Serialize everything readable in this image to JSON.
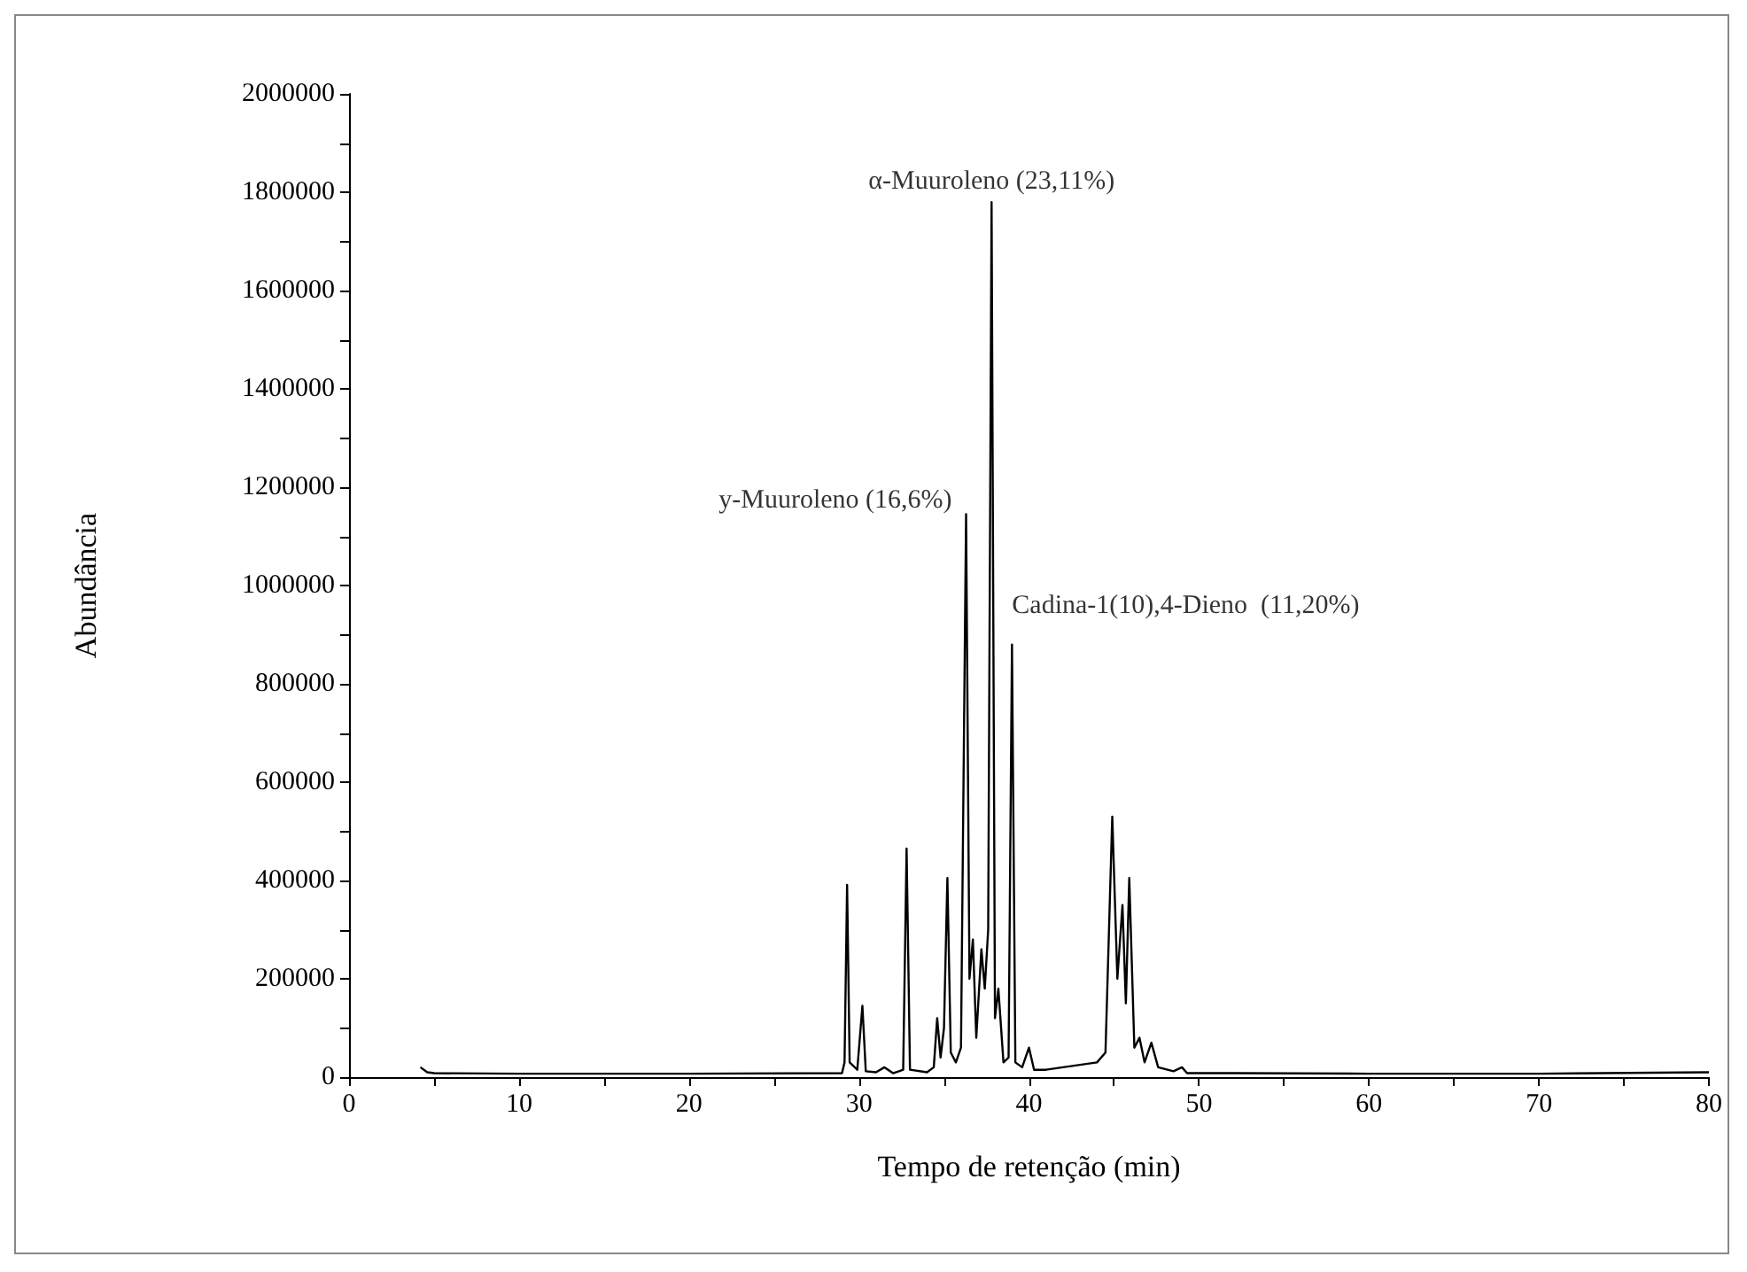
{
  "chart_data": {
    "type": "line",
    "xlabel": "Tempo de retenção (min)",
    "ylabel": "Abundância",
    "x": [
      4.2,
      4.6,
      5,
      10,
      20,
      29,
      29.15,
      29.3,
      29.45,
      29.9,
      30.2,
      30.4,
      31,
      31.5,
      32,
      32.6,
      32.8,
      33,
      34,
      34.4,
      34.6,
      34.8,
      35,
      35.2,
      35.4,
      35.7,
      36,
      36.3,
      36.5,
      36.7,
      36.9,
      37.2,
      37.4,
      37.6,
      37.8,
      38,
      38.2,
      38.5,
      38.8,
      39,
      39.2,
      39.6,
      40,
      40.3,
      41,
      42,
      43,
      44,
      44.5,
      44.9,
      45.2,
      45.5,
      45.7,
      45.9,
      46.2,
      46.5,
      46.8,
      47.2,
      47.6,
      48.5,
      49,
      49.3,
      52,
      60,
      70,
      80
    ],
    "values": [
      20000,
      10000,
      8000,
      7000,
      7000,
      8000,
      30000,
      391000,
      30000,
      15000,
      145000,
      12000,
      10000,
      20000,
      8000,
      15000,
      465000,
      15000,
      10000,
      20000,
      120000,
      40000,
      100000,
      405000,
      50000,
      30000,
      60000,
      1145000,
      200000,
      280000,
      80000,
      260000,
      180000,
      300000,
      1780000,
      120000,
      180000,
      30000,
      40000,
      880000,
      30000,
      20000,
      60000,
      15000,
      15000,
      20000,
      25000,
      30000,
      50000,
      530000,
      200000,
      350000,
      150000,
      405000,
      60000,
      80000,
      30000,
      70000,
      20000,
      12000,
      20000,
      8000,
      8000,
      7000,
      7000,
      10000
    ],
    "xlim": [
      0,
      80
    ],
    "xticks": [
      0,
      10,
      20,
      30,
      40,
      50,
      60,
      70,
      80
    ],
    "ylim": [
      0,
      2000000
    ],
    "yticks": [
      0,
      200000,
      400000,
      600000,
      800000,
      1000000,
      1200000,
      1400000,
      1600000,
      1800000,
      2000000
    ],
    "color": "#000000",
    "grid": false,
    "marker": "none",
    "line_style": "solid",
    "annotations": [
      {
        "text": "α-Muuroleno (23,11%)",
        "x": 37.8,
        "y": 1780000
      },
      {
        "text": "y-Muuroleno (16,6%)",
        "x": 36.3,
        "y": 1145000
      },
      {
        "text": "Cadina-1(10),4-Dieno  (11,20%)",
        "x": 39,
        "y": 880000
      }
    ]
  }
}
